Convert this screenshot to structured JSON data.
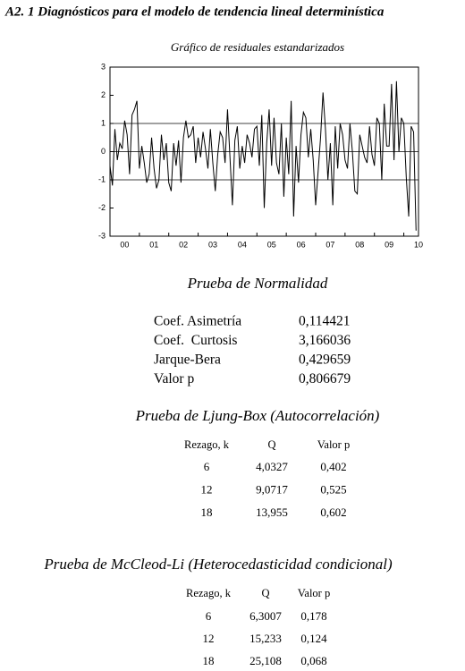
{
  "header": {
    "title": "A2. 1 Diagnósticos para el modelo de tendencia lineal determinística"
  },
  "chart_data": {
    "type": "line",
    "title": "Gráfico de residuales estandarizados",
    "values": [
      -0.5,
      -1.2,
      0.8,
      -0.3,
      0.3,
      0.1,
      1.1,
      0.6,
      -0.8,
      1.3,
      1.5,
      1.8,
      -0.6,
      0.2,
      -0.4,
      -1.1,
      -0.8,
      0.5,
      -0.6,
      -1.3,
      -1.0,
      0.6,
      -0.3,
      0.3,
      -1.1,
      -1.4,
      0.3,
      -0.5,
      0.4,
      -1.1,
      0.5,
      1.1,
      0.5,
      0.6,
      0.9,
      -0.4,
      0.5,
      -0.2,
      0.7,
      0.1,
      -0.6,
      0.8,
      -0.4,
      -1.4,
      -0.1,
      0.7,
      0.5,
      -0.4,
      1.5,
      -0.2,
      -1.9,
      0.4,
      0.9,
      -0.6,
      0.2,
      -0.4,
      0.6,
      0.3,
      -0.2,
      0.8,
      0.9,
      -0.5,
      1.3,
      -2.0,
      0.3,
      1.5,
      -0.5,
      1.2,
      -0.4,
      -0.8,
      1.0,
      -1.6,
      0.5,
      -0.8,
      1.8,
      -2.3,
      0.2,
      -1.1,
      0.6,
      1.4,
      1.2,
      -0.2,
      0.8,
      -0.3,
      -1.9,
      -0.7,
      0.5,
      2.1,
      0.8,
      -1.0,
      0.3,
      -1.9,
      0.9,
      -0.6,
      1.0,
      0.6,
      -0.3,
      -0.6,
      1.0,
      0.0,
      -1.4,
      -1.5,
      0.6,
      0.2,
      -0.2,
      -0.4,
      0.9,
      -0.1,
      -0.5,
      1.2,
      1.0,
      -1.0,
      1.7,
      0.2,
      0.2,
      2.4,
      -0.3,
      2.5,
      0.0,
      1.2,
      1.0,
      -0.9,
      -2.3,
      0.9,
      0.7,
      -2.8
    ],
    "color": "#000000",
    "xlim": [
      0,
      126
    ],
    "xticks": [
      {
        "value": 0,
        "label": "00"
      },
      {
        "value": 12,
        "label": "01"
      },
      {
        "value": 24,
        "label": "02"
      },
      {
        "value": 36,
        "label": "03"
      },
      {
        "value": 48,
        "label": "04"
      },
      {
        "value": 60,
        "label": "05"
      },
      {
        "value": 72,
        "label": "06"
      },
      {
        "value": 84,
        "label": "07"
      },
      {
        "value": 96,
        "label": "08"
      },
      {
        "value": 108,
        "label": "09"
      },
      {
        "value": 120,
        "label": "10"
      }
    ],
    "ylim": [
      -3,
      3
    ],
    "yticks": [
      -3,
      -2,
      -1,
      0,
      1,
      2,
      3
    ],
    "hlines": [
      -1,
      0,
      1
    ]
  },
  "normality": {
    "title": "Prueba de Normalidad",
    "rows": [
      [
        "Coef. Asimetría",
        "0,114421"
      ],
      [
        "Coef.  Curtosis",
        "3,166036"
      ],
      [
        "Jarque-Bera",
        "0,429659"
      ],
      [
        "Valor p",
        "0,806679"
      ]
    ]
  },
  "ljung_box": {
    "title": "Prueba de Ljung-Box (Autocorrelación)",
    "header": [
      "Rezago, k",
      "Q",
      "Valor p"
    ],
    "rows": [
      [
        "6",
        "4,0327",
        "0,402"
      ],
      [
        "12",
        "9,0717",
        "0,525"
      ],
      [
        "18",
        "13,955",
        "0,602"
      ]
    ]
  },
  "mcleod_li": {
    "title": "Prueba de McCleod-Li (Heterocedasticidad condicional)",
    "header": [
      "Rezago, k",
      "Q",
      "Valor p"
    ],
    "rows": [
      [
        "6",
        "6,3007",
        "0,178"
      ],
      [
        "12",
        "15,233",
        "0,124"
      ],
      [
        "18",
        "25,108",
        "0,068"
      ]
    ]
  }
}
